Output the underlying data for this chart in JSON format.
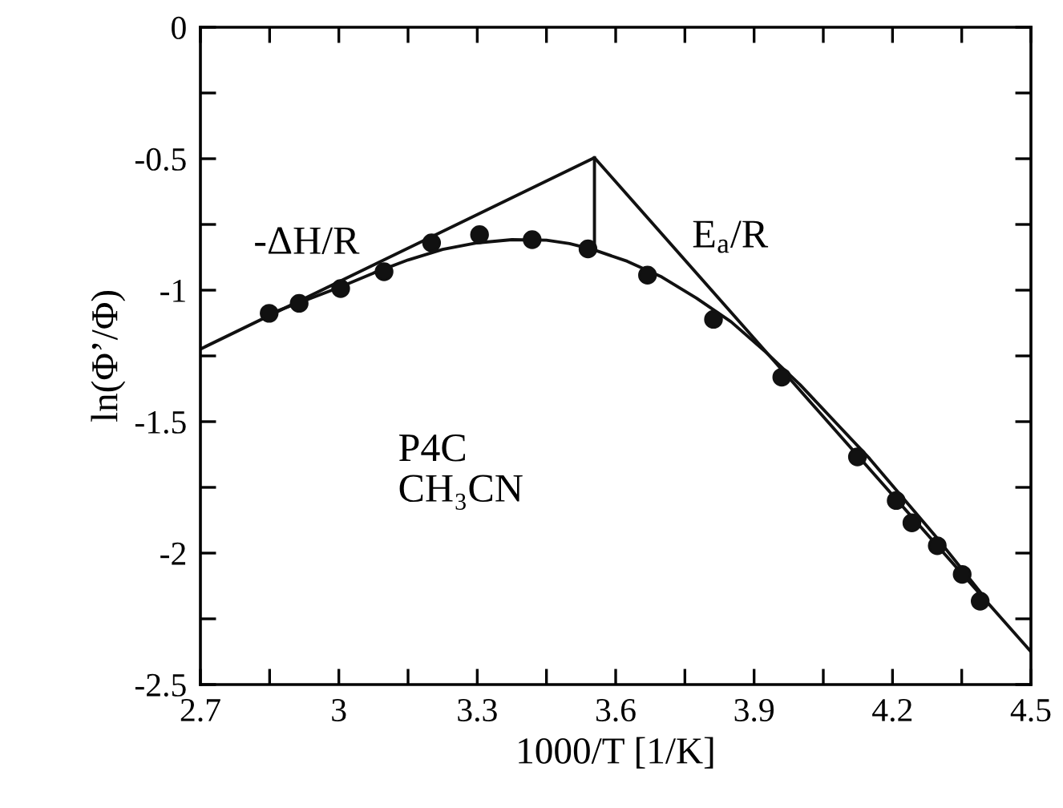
{
  "chart_data": {
    "type": "scatter",
    "xlabel": "1000/T [1/K]",
    "ylabel": "ln(Φ’/Φ)",
    "xlim": [
      2.7,
      4.5
    ],
    "ylim": [
      -2.5,
      0
    ],
    "xticks": [
      2.7,
      {
        "value": 2.85,
        "label": null
      },
      3,
      {
        "value": 3.15,
        "label": null
      },
      3.3,
      {
        "value": 3.45,
        "label": null
      },
      3.6,
      {
        "value": 3.75,
        "label": null
      },
      3.9,
      {
        "value": 4.05,
        "label": null
      },
      4.2,
      {
        "value": 4.35,
        "label": null
      },
      4.5
    ],
    "yticks": [
      -2.5,
      {
        "value": -2.25,
        "label": null
      },
      -2,
      {
        "value": -1.75,
        "label": null
      },
      -1.5,
      {
        "value": -1.25,
        "label": null
      },
      -1,
      {
        "value": -0.75,
        "label": null
      },
      -0.5,
      {
        "value": -0.25,
        "label": null
      },
      0
    ],
    "grid": false,
    "legend": false,
    "series": [
      {
        "color": "#111111",
        "marker": "circle",
        "x": [
          2.849,
          2.914,
          3.004,
          3.098,
          3.201,
          3.305,
          3.419,
          3.54,
          3.669,
          3.812,
          3.96,
          4.124,
          4.208,
          4.242,
          4.297,
          4.351,
          4.39
        ],
        "values": [
          -1.088,
          -1.05,
          -0.994,
          -0.93,
          -0.82,
          -0.789,
          -0.808,
          -0.843,
          -0.943,
          -1.111,
          -1.331,
          -1.634,
          -1.8,
          -1.885,
          -1.972,
          -2.081,
          -2.183
        ]
      },
      {
        "type": "line",
        "color": "#111111",
        "marker": "none",
        "x": [
          2.85,
          2.925,
          3.0,
          3.075,
          3.15,
          3.225,
          3.3,
          3.375,
          3.45,
          3.5,
          3.55,
          3.625,
          3.7,
          3.775,
          3.85,
          3.925,
          4.0,
          4.075,
          4.15,
          4.225,
          4.3,
          4.4
        ],
        "values": [
          -1.09,
          -1.04,
          -0.99,
          -0.935,
          -0.885,
          -0.845,
          -0.82,
          -0.808,
          -0.81,
          -0.823,
          -0.845,
          -0.89,
          -0.95,
          -1.03,
          -1.12,
          -1.235,
          -1.36,
          -1.5,
          -1.64,
          -1.795,
          -1.95,
          -2.17
        ]
      },
      {
        "type": "line",
        "color": "#111111",
        "marker": "none",
        "x": [
          2.7,
          3.554,
          4.5
        ],
        "values": [
          -1.224,
          -0.496,
          -2.375
        ]
      },
      {
        "type": "line",
        "color": "#111111",
        "marker": "none",
        "x": [
          3.554,
          3.554
        ],
        "values": [
          -0.496,
          -0.846
        ]
      }
    ],
    "annotations": [
      "-ΔH/R",
      "E$_{a}$/R",
      "P4C\nCH₃CN"
    ]
  }
}
